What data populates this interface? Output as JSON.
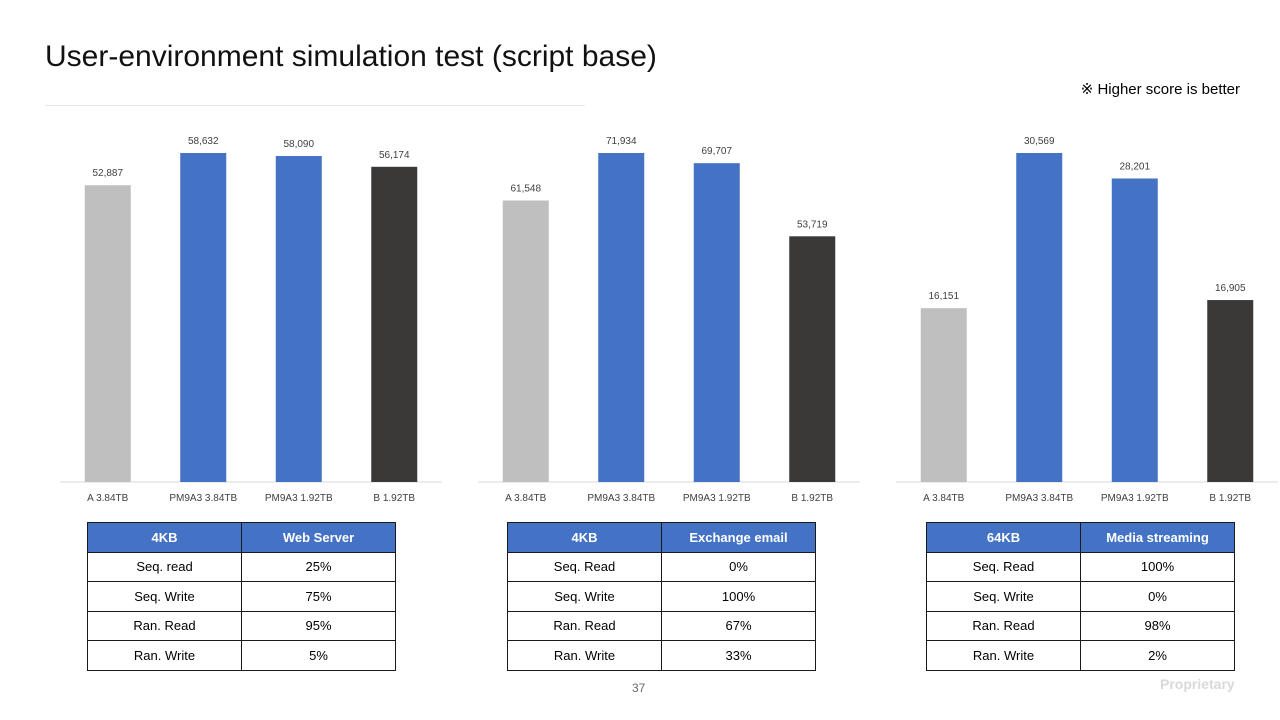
{
  "page": {
    "title": "User-environment simulation test (script base)",
    "note": "※ Higher score is better",
    "page_number": "37",
    "footer": "Proprietary"
  },
  "colors": {
    "gray_bar": "#bfbfbf",
    "blue_bar": "#4472c4",
    "dark_bar": "#3a3938",
    "header_bg": "#4472c4"
  },
  "chart_data": [
    {
      "type": "bar",
      "categories": [
        "A 3.84TB",
        "PM9A3 3.84TB",
        "PM9A3 1.92TB",
        "B 1.92TB"
      ],
      "values": [
        52887,
        58632,
        58090,
        56174
      ],
      "labels": [
        "52,887",
        "58,632",
        "58,090",
        "56,174"
      ],
      "bar_colors": [
        "#bfbfbf",
        "#4472c4",
        "#4472c4",
        "#3a3938"
      ],
      "ylim": [
        0,
        58632
      ],
      "grid": false
    },
    {
      "type": "bar",
      "categories": [
        "A 3.84TB",
        "PM9A3 3.84TB",
        "PM9A3 1.92TB",
        "B 1.92TB"
      ],
      "values": [
        61548,
        71934,
        69707,
        53719
      ],
      "labels": [
        "61,548",
        "71,934",
        "69,707",
        "53,719"
      ],
      "bar_colors": [
        "#bfbfbf",
        "#4472c4",
        "#4472c4",
        "#3a3938"
      ],
      "ylim": [
        0,
        71934
      ],
      "grid": false
    },
    {
      "type": "bar",
      "categories": [
        "A 3.84TB",
        "PM9A3 3.84TB",
        "PM9A3 1.92TB",
        "B 1.92TB"
      ],
      "values": [
        16151,
        30569,
        28201,
        16905
      ],
      "labels": [
        "16,151",
        "30,569",
        "28,201",
        "16,905"
      ],
      "bar_colors": [
        "#bfbfbf",
        "#4472c4",
        "#4472c4",
        "#3a3938"
      ],
      "ylim": [
        0,
        30569
      ],
      "grid": false
    }
  ],
  "tables": [
    {
      "header": [
        "4KB",
        "Web Server"
      ],
      "rows": [
        [
          "Seq. read",
          "25%"
        ],
        [
          "Seq. Write",
          "75%"
        ],
        [
          "Ran. Read",
          "95%"
        ],
        [
          "Ran. Write",
          "5%"
        ]
      ]
    },
    {
      "header": [
        "4KB",
        "Exchange email"
      ],
      "rows": [
        [
          "Seq. Read",
          "0%"
        ],
        [
          "Seq. Write",
          "100%"
        ],
        [
          "Ran. Read",
          "67%"
        ],
        [
          "Ran. Write",
          "33%"
        ]
      ]
    },
    {
      "header": [
        "64KB",
        "Media streaming"
      ],
      "rows": [
        [
          "Seq. Read",
          "100%"
        ],
        [
          "Seq. Write",
          "0%"
        ],
        [
          "Ran. Read",
          "98%"
        ],
        [
          "Ran. Write",
          "2%"
        ]
      ]
    }
  ]
}
